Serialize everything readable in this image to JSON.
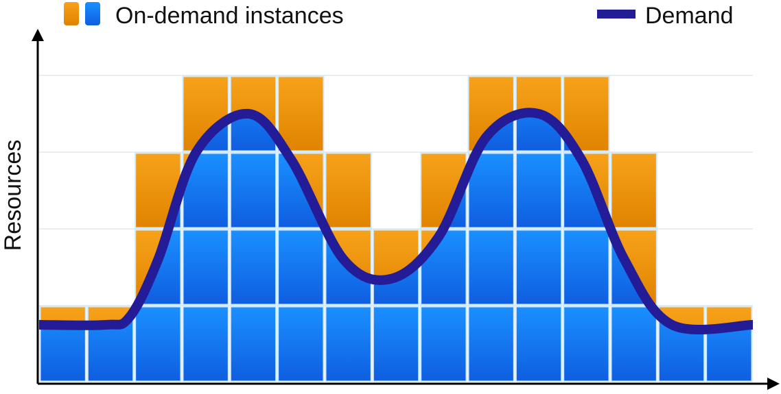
{
  "chart_data": {
    "type": "bar",
    "title": "",
    "xlabel": "",
    "ylabel": "Resources",
    "ylim": [
      0,
      4.1
    ],
    "grid": true,
    "legend": [
      {
        "label": "On-demand instances",
        "kind": "bars",
        "colors": [
          "#f39c12",
          "#1a8cff"
        ]
      },
      {
        "label": "Demand",
        "kind": "line",
        "color": "#241c96"
      }
    ],
    "legend_placement": "top",
    "instance_counts": [
      1,
      1,
      3,
      4,
      4,
      4,
      3,
      2,
      3,
      4,
      4,
      4,
      3,
      1,
      1
    ],
    "demand_curve": [
      [
        0,
        0.75
      ],
      [
        1.4,
        0.75
      ],
      [
        1.9,
        0.85
      ],
      [
        2.5,
        1.6
      ],
      [
        3.3,
        3.0
      ],
      [
        4.4,
        3.5
      ],
      [
        5.3,
        2.9
      ],
      [
        6.4,
        1.6
      ],
      [
        7.4,
        1.35
      ],
      [
        8.4,
        1.9
      ],
      [
        9.4,
        3.2
      ],
      [
        10.5,
        3.5
      ],
      [
        11.4,
        2.9
      ],
      [
        12.3,
        1.6
      ],
      [
        13.3,
        0.75
      ],
      [
        15,
        0.75
      ]
    ],
    "colors": {
      "ondemand_orange": "#f39c12",
      "used_blue": "#1a8cff",
      "demand_line": "#241c96",
      "cell_border": "#cfeaff",
      "axis": "#000000",
      "grid": "#e6e6e6"
    }
  }
}
